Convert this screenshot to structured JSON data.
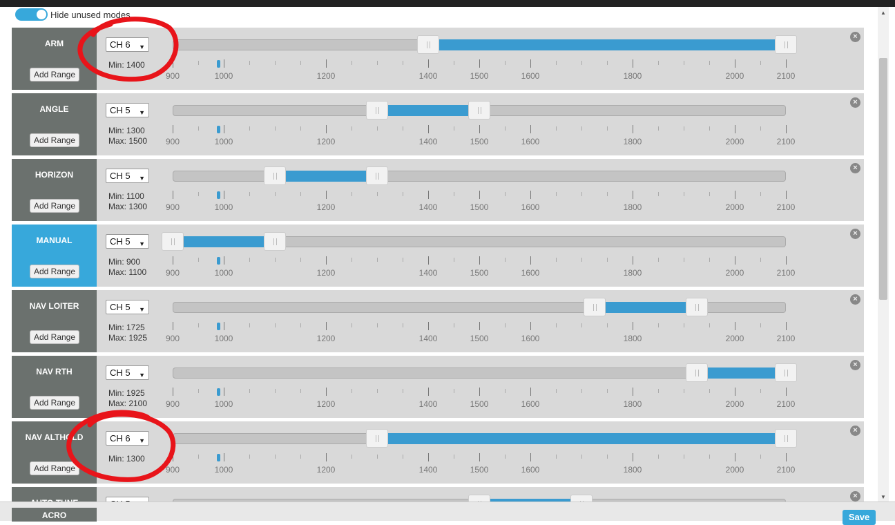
{
  "toolbar": {
    "toggle_label": "Hide unused modes",
    "toggle_on": true
  },
  "axis": {
    "min": 900,
    "max": 2100,
    "labels": [
      "900",
      "1000",
      "1200",
      "1400",
      "1500",
      "1600",
      "1800",
      "2000",
      "2100"
    ],
    "label_values": [
      900,
      1000,
      1200,
      1400,
      1500,
      1600,
      1800,
      2000,
      2100
    ],
    "current_value": 990
  },
  "modes": [
    {
      "name": "ARM",
      "channel": "CH 6",
      "min_label": "Min: 1400",
      "max_label": "",
      "min": 1400,
      "max": 2100,
      "active": false
    },
    {
      "name": "ANGLE",
      "channel": "CH 5",
      "min_label": "Min: 1300",
      "max_label": "Max: 1500",
      "min": 1300,
      "max": 1500,
      "active": false
    },
    {
      "name": "HORIZON",
      "channel": "CH 5",
      "min_label": "Min: 1100",
      "max_label": "Max: 1300",
      "min": 1100,
      "max": 1300,
      "active": false
    },
    {
      "name": "MANUAL",
      "channel": "CH 5",
      "min_label": "Min: 900",
      "max_label": "Max: 1100",
      "min": 900,
      "max": 1100,
      "active": true
    },
    {
      "name": "NAV LOITER",
      "channel": "CH 5",
      "min_label": "Min: 1725",
      "max_label": "Max: 1925",
      "min": 1725,
      "max": 1925,
      "active": false
    },
    {
      "name": "NAV RTH",
      "channel": "CH 5",
      "min_label": "Min: 1925",
      "max_label": "Max: 2100",
      "min": 1925,
      "max": 2100,
      "active": false
    },
    {
      "name": "NAV ALTHOLD",
      "channel": "CH 6",
      "min_label": "Min: 1300",
      "max_label": "",
      "min": 1300,
      "max": 2100,
      "active": false
    },
    {
      "name": "AUTO TUNE",
      "channel": "CH 5",
      "min_label": "",
      "max_label": "",
      "min": 1500,
      "max": 1700,
      "active": false
    }
  ],
  "next_mode": {
    "name": "ACRO"
  },
  "add_range_label": "Add Range",
  "remove_label": "×",
  "save_label": "Save",
  "colors": {
    "accent": "#37a8db",
    "range_fill": "#3a9bd0",
    "mode_side": "#6b716e",
    "annotation": "#e8141a"
  },
  "icons": {
    "remove": "close-circle-icon",
    "dropdown": "chevron-down-icon"
  }
}
